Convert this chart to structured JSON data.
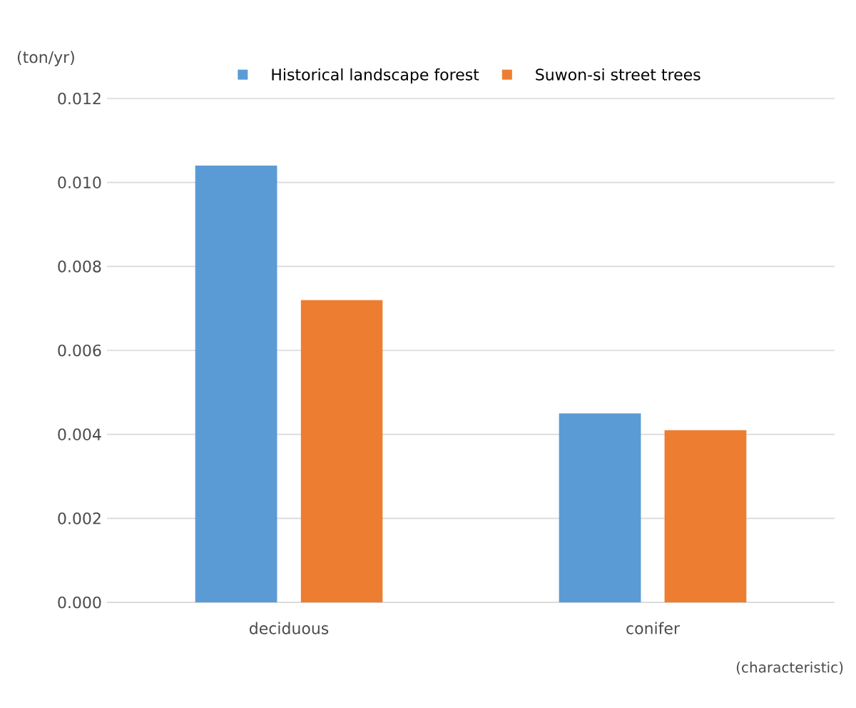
{
  "chart_data": {
    "type": "bar",
    "categories": [
      "deciduous",
      "conifer"
    ],
    "series": [
      {
        "name": "Historical landscape forest",
        "color": "#5b9bd5",
        "values": [
          0.0104,
          0.0045
        ]
      },
      {
        "name": "Suwon-si street trees",
        "color": "#ed7d31",
        "values": [
          0.0072,
          0.0041
        ]
      }
    ],
    "ylabel": "(ton/yr)",
    "xlabel": "(characteristic)",
    "ylim": [
      0,
      0.012
    ],
    "yticks": [
      {
        "value": 0,
        "label": "0.000"
      },
      {
        "value": 0.002,
        "label": "0.002"
      },
      {
        "value": 0.004,
        "label": "0.004"
      },
      {
        "value": 0.006,
        "label": "0.006"
      },
      {
        "value": 0.008,
        "label": "0.008"
      },
      {
        "value": 0.01,
        "label": "0.010"
      },
      {
        "value": 0.012,
        "label": "0.012"
      }
    ],
    "grid": "y",
    "legend": "top"
  }
}
